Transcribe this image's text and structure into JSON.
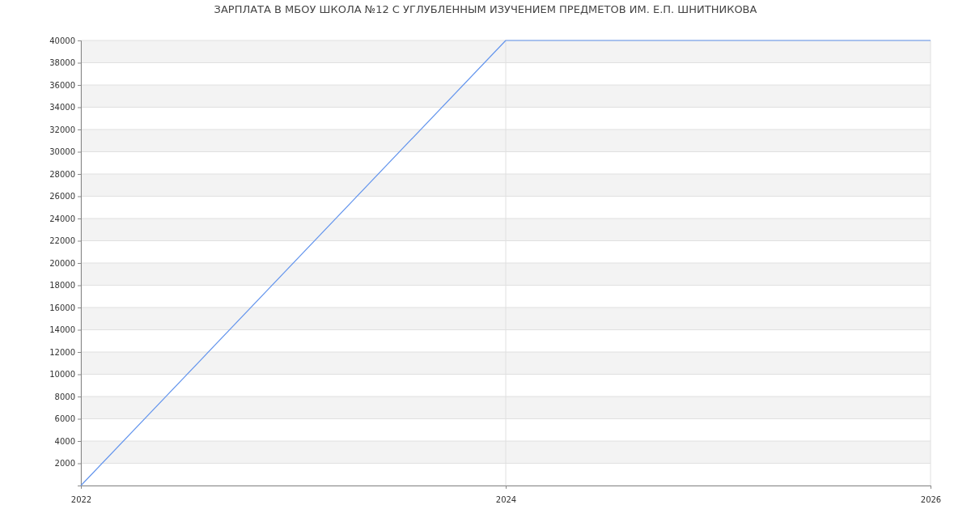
{
  "chart_data": {
    "type": "line",
    "title": "ЗАРПЛАТА В МБОУ ШКОЛА №12 С УГЛУБЛЕННЫМ ИЗУЧЕНИЕМ ПРЕДМЕТОВ ИМ. Е.П. ШНИТНИКОВА",
    "x": [
      2022,
      2024,
      2026
    ],
    "series": [
      {
        "color": "#6495ed",
        "values": [
          0,
          40000,
          40000
        ]
      }
    ],
    "xlim": [
      2022,
      2026
    ],
    "xticks": [
      2022,
      2024,
      2026
    ],
    "ylim": [
      0,
      40000
    ],
    "yticks": [
      {
        "value": 0,
        "label": null
      },
      2000,
      4000,
      6000,
      8000,
      10000,
      12000,
      14000,
      16000,
      18000,
      20000,
      22000,
      24000,
      26000,
      28000,
      30000,
      32000,
      34000,
      36000,
      38000,
      40000
    ],
    "grid": true,
    "marker": "none",
    "line_style": "solid"
  }
}
